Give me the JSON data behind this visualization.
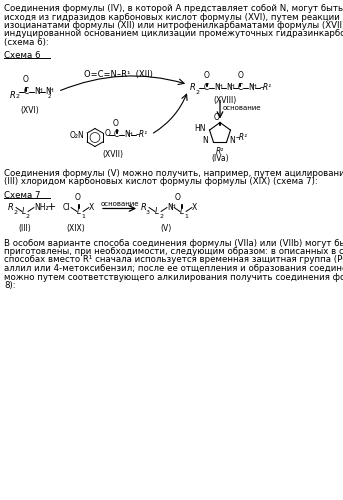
{
  "bg_color": "#ffffff",
  "text_color": "#000000",
  "figsize": [
    3.43,
    5.0
  ],
  "dpi": 100,
  "schema6_label": "Схема 6",
  "schema7_label": "Схема 7",
  "lines1": [
    "Соединения формулы (IV), в которой A представляет собой N, могут быть изготовлены,",
    "исходя из гидразидов карбоновых кислот формулы (XVI), путем реакции обмена с",
    "изоцианатами формулы (XII) или нитрофенилкарбаматами формулы (XVII) и последующей",
    "индуцированной основанием циклизации промежуточных гидразинкарбоксамидов (XVIII)",
    "(схема 6):"
  ],
  "lines2": [
    "Соединения формулы (V) можно получить, например, путем ацилирования аминов формулы",
    "(III) хлоридом карбоновых кислот формулы формулы (XIX) (схема 7):"
  ],
  "lines3": [
    "В особом варианте способа соединения формулы (VIIa) или (VIIb) могут быть",
    "приготовлены, при необходимости, следующим образом: в описанных в схемах 1,3,4 и 6",
    "способах вместо R¹ сначала используется временная защитная группа (PG), как например,",
    "аллил или 4-метоксибензил; после ее отщепления и образования соединений формулы (X)",
    "можно путем соответствующего алкилирования получить соединения формулы (VII) (схема",
    "8):"
  ]
}
